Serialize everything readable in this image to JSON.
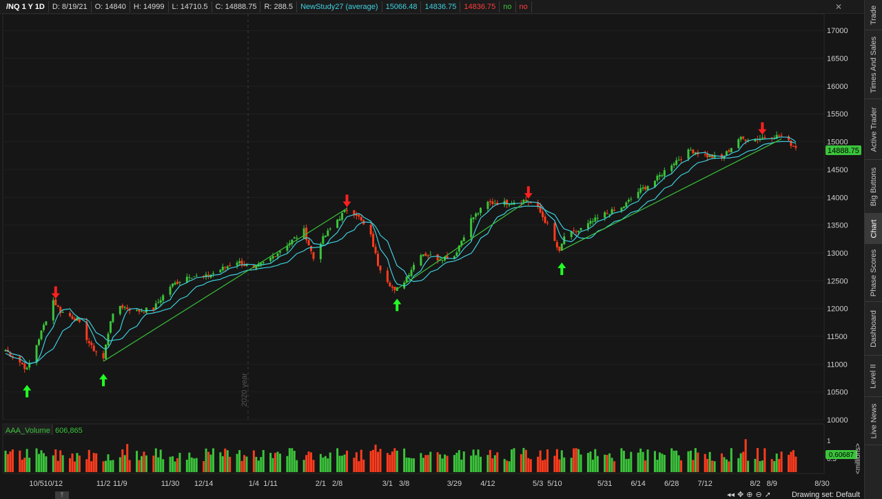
{
  "header": {
    "symbol": "/NQ 1 Y 1D",
    "date": "D: 8/19/21",
    "open": "O: 14840",
    "high": "H: 14999",
    "low": "L: 14710.5",
    "close": "C: 14888.75",
    "range": "R: 288.5",
    "study_name": "NewStudy27 (average)",
    "study_value_1": "15066.48",
    "study_value_2": "14836.75",
    "study_value_3": "14836.75",
    "flag_1": "no",
    "flag_2": "no"
  },
  "price_axis": {
    "ticks": [
      "17000",
      "16500",
      "16000",
      "15500",
      "15000",
      "14500",
      "14000",
      "13500",
      "13000",
      "12500",
      "12000",
      "11500",
      "11000",
      "10500",
      "10000"
    ],
    "last_price_label": "14888.75",
    "colors": {
      "last_price_bg": "#3bc43b",
      "last_price_text": "#000000"
    }
  },
  "year_marker": "2020 year",
  "volume_panel": {
    "study_label": "AAA_Volume",
    "study_value": "606,865",
    "axis_top": "1",
    "axis_mid": "0.5",
    "current_label": "0.60687",
    "unit_label": "<millions>"
  },
  "date_axis": [
    "10/5",
    "10/12",
    "11/2",
    "11/9",
    "11/30",
    "12/14",
    "1/4",
    "1/11",
    "2/1",
    "2/8",
    "3/1",
    "3/8",
    "3/29",
    "4/12",
    "5/3",
    "5/10",
    "5/31",
    "6/14",
    "6/28",
    "7/12",
    "8/2",
    "8/9",
    "8/30"
  ],
  "right_tabs": [
    {
      "label": "Trade",
      "active": false
    },
    {
      "label": "Times And Sales",
      "active": false
    },
    {
      "label": "Active Trader",
      "active": false
    },
    {
      "label": "Big Buttons",
      "active": false
    },
    {
      "label": "Chart",
      "active": true
    },
    {
      "label": "Phase Scores",
      "active": false
    },
    {
      "label": "Dashboard",
      "active": false
    },
    {
      "label": "Level II",
      "active": false
    },
    {
      "label": "Live News",
      "active": false
    }
  ],
  "status": {
    "drawing_set": "Drawing set: Default"
  },
  "chart_data": {
    "type": "candlestick",
    "symbol": "/NQ",
    "period": "1 Y 1D",
    "y_range": [
      10000,
      17300
    ],
    "x_start": "2020-09-22",
    "x_end": "2021-08-30",
    "price_keypoints": [
      [
        "2020-09-22",
        11250
      ],
      [
        "2020-09-29",
        11000
      ],
      [
        "2020-10-01",
        10900
      ],
      [
        "2020-10-05",
        11350
      ],
      [
        "2020-10-12",
        12150
      ],
      [
        "2020-10-15",
        11950
      ],
      [
        "2020-10-22",
        11800
      ],
      [
        "2020-10-28",
        11300
      ],
      [
        "2020-11-02",
        11100
      ],
      [
        "2020-11-05",
        11800
      ],
      [
        "2020-11-09",
        12050
      ],
      [
        "2020-11-16",
        11950
      ],
      [
        "2020-11-23",
        12000
      ],
      [
        "2020-11-30",
        12400
      ],
      [
        "2020-12-08",
        12600
      ],
      [
        "2020-12-14",
        12550
      ],
      [
        "2020-12-21",
        12700
      ],
      [
        "2020-12-28",
        12850
      ],
      [
        "2021-01-04",
        12700
      ],
      [
        "2021-01-11",
        12900
      ],
      [
        "2021-01-25",
        13400
      ],
      [
        "2021-01-29",
        12900
      ],
      [
        "2021-02-01",
        13200
      ],
      [
        "2021-02-08",
        13600
      ],
      [
        "2021-02-12",
        13780
      ],
      [
        "2021-02-16",
        13700
      ],
      [
        "2021-02-22",
        13300
      ],
      [
        "2021-02-25",
        12800
      ],
      [
        "2021-03-04",
        12300
      ],
      [
        "2021-03-08",
        12500
      ],
      [
        "2021-03-15",
        13000
      ],
      [
        "2021-03-22",
        12900
      ],
      [
        "2021-03-29",
        12950
      ],
      [
        "2021-04-05",
        13600
      ],
      [
        "2021-04-12",
        13900
      ],
      [
        "2021-04-19",
        13900
      ],
      [
        "2021-04-28",
        13950
      ],
      [
        "2021-05-03",
        13800
      ],
      [
        "2021-05-07",
        13500
      ],
      [
        "2021-05-12",
        13000
      ],
      [
        "2021-05-14",
        13300
      ],
      [
        "2021-05-20",
        13400
      ],
      [
        "2021-05-31",
        13700
      ],
      [
        "2021-06-07",
        13800
      ],
      [
        "2021-06-14",
        14100
      ],
      [
        "2021-06-21",
        14300
      ],
      [
        "2021-06-28",
        14600
      ],
      [
        "2021-07-06",
        14850
      ],
      [
        "2021-07-12",
        14750
      ],
      [
        "2021-07-19",
        14700
      ],
      [
        "2021-07-26",
        15050
      ],
      [
        "2021-08-02",
        15050
      ],
      [
        "2021-08-09",
        15100
      ],
      [
        "2021-08-13",
        15100
      ],
      [
        "2021-08-19",
        14888.75
      ]
    ],
    "signals": [
      {
        "type": "buy",
        "date": "2020-10-01",
        "price": 10800
      },
      {
        "type": "sell",
        "date": "2020-10-13",
        "price": 12200
      },
      {
        "type": "buy",
        "date": "2020-11-02",
        "price": 11000
      },
      {
        "type": "sell",
        "date": "2021-02-12",
        "price": 13850
      },
      {
        "type": "buy",
        "date": "2021-03-05",
        "price": 12350
      },
      {
        "type": "sell",
        "date": "2021-04-29",
        "price": 14000
      },
      {
        "type": "buy",
        "date": "2021-05-13",
        "price": 13000
      },
      {
        "type": "sell",
        "date": "2021-08-05",
        "price": 15150
      }
    ],
    "trend_lines": [
      {
        "from": [
          "2020-11-02",
          11050
        ],
        "to": [
          "2021-02-12",
          13800
        ]
      },
      {
        "from": [
          "2021-03-05",
          12350
        ],
        "to": [
          "2021-04-29",
          13950
        ]
      },
      {
        "from": [
          "2021-05-13",
          13050
        ],
        "to": [
          "2021-08-13",
          15050
        ]
      }
    ],
    "volume_range": [
      0,
      1.0
    ],
    "colors": {
      "up": "#3bc43b",
      "down": "#ff3c1e",
      "ma": "#3fd0e0",
      "trend": "#3bc43b",
      "buy_arrow": "#22ff22",
      "sell_arrow": "#ff2020"
    }
  }
}
